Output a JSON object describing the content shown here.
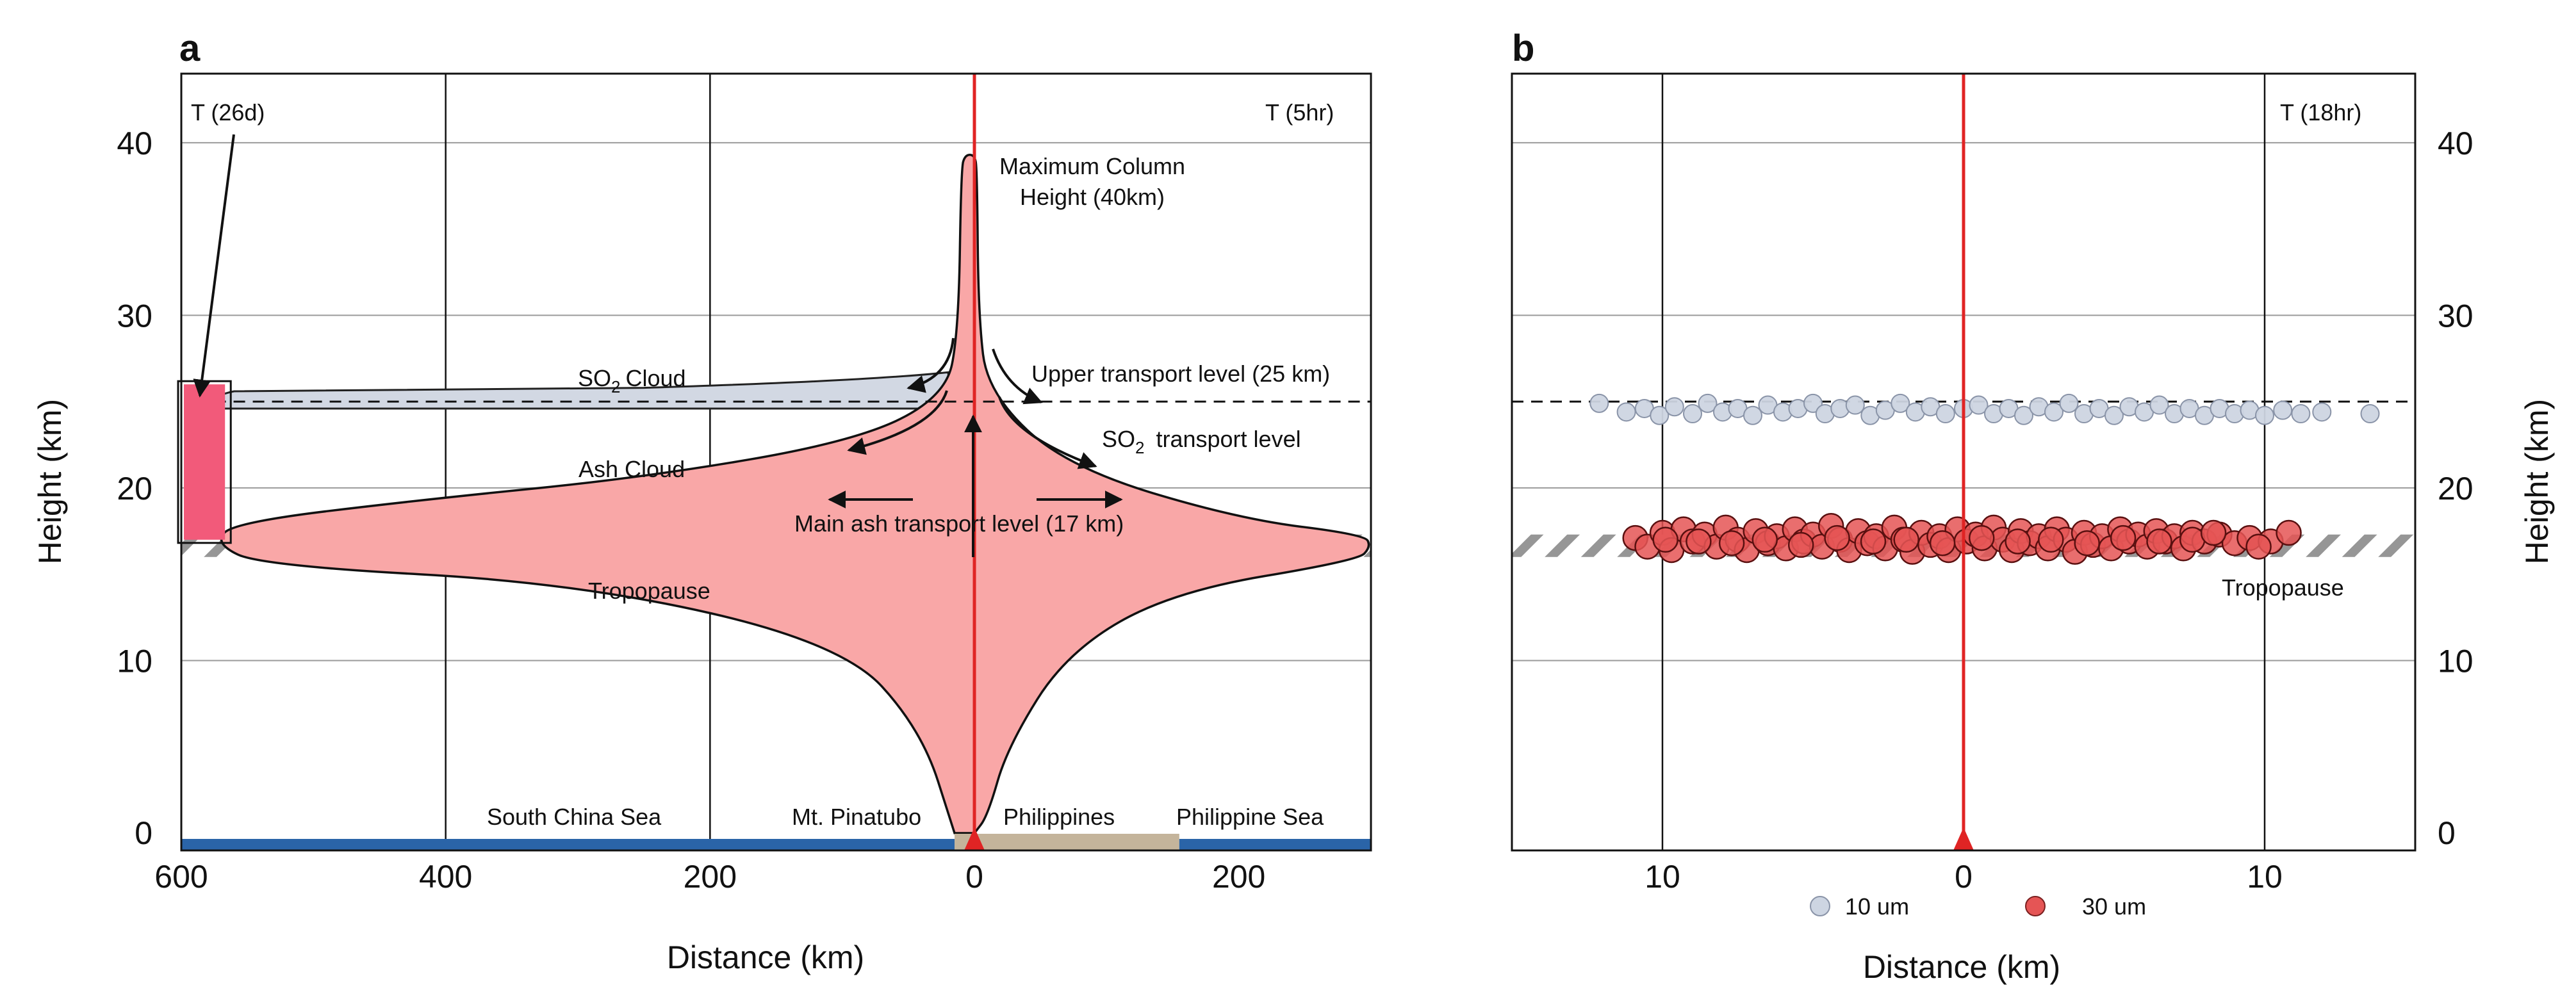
{
  "colors": {
    "plume": "#f9a7a7",
    "so2_cloud": "#d2d8e3",
    "so2_box": "#f25a7a",
    "vent_line": "#e02424",
    "sea": "#2a64a8",
    "land": "#c4b49b",
    "hatch": "#8a8a8a",
    "particle_10um": "#cdd5e2",
    "particle_30um": "#e55555"
  },
  "chart_data": [
    {
      "panel": "a",
      "type": "schematic-area",
      "xlabel": "Distance (km)",
      "ylabel": "Height (km)",
      "xlim": [
        -600,
        300
      ],
      "ylim": [
        -1,
        44
      ],
      "x_ticks": [
        {
          "value": -600,
          "label": "600"
        },
        {
          "value": -400,
          "label": "400"
        },
        {
          "value": -200,
          "label": "200"
        },
        {
          "value": 0,
          "label": "0"
        },
        {
          "value": 200,
          "label": "200"
        }
      ],
      "y_ticks": [
        {
          "value": 0,
          "label": "0"
        },
        {
          "value": 10,
          "label": "10"
        },
        {
          "value": 20,
          "label": "20"
        },
        {
          "value": 30,
          "label": "30"
        },
        {
          "value": 40,
          "label": "40"
        }
      ],
      "gridlines_x": [
        -400,
        -200,
        0
      ],
      "gridlines_y": [
        10,
        20,
        30,
        40
      ],
      "time_left": "T (26d)",
      "time_right": "T (5hr)",
      "max_column_height_km": 40,
      "upper_transport_level_km": 25,
      "main_ash_transport_level_km": 17,
      "tropopause_km": [
        16,
        17.3
      ],
      "so2_cloud_extent_km": [
        -575,
        -20
      ],
      "ash_cloud_extent_km": [
        -580,
        300
      ],
      "so2_box": {
        "x_range_km": [
          -600,
          -565
        ],
        "height_km": [
          17,
          26
        ]
      },
      "ash_cloud_outline": [
        [
          -15,
          0
        ],
        [
          -40,
          6
        ],
        [
          -100,
          11
        ],
        [
          -300,
          14.5
        ],
        [
          -540,
          15.5
        ],
        [
          -575,
          16.8
        ],
        [
          -560,
          18
        ],
        [
          -420,
          19.3
        ],
        [
          -250,
          20.6
        ],
        [
          -90,
          22.7
        ],
        [
          -22,
          25.3
        ],
        [
          -12,
          29
        ],
        [
          -10,
          38.5
        ],
        [
          -7,
          39.3
        ],
        [
          0,
          39.3
        ],
        [
          2,
          38.5
        ],
        [
          3,
          30
        ],
        [
          10,
          25.5
        ],
        [
          70,
          21.2
        ],
        [
          200,
          18.2
        ],
        [
          295,
          17.3
        ],
        [
          300,
          16.6
        ],
        [
          290,
          15.8
        ],
        [
          150,
          14
        ],
        [
          70,
          10.5
        ],
        [
          25,
          5
        ],
        [
          10,
          1
        ],
        [
          0,
          0
        ]
      ],
      "surface": {
        "sea_left_km": [
          -600,
          -15
        ],
        "land_km": [
          -15,
          155
        ],
        "sea_right_km": [
          155,
          300
        ]
      },
      "labels": {
        "panel_letter": "a",
        "so2_cloud": "SO",
        "so2_cloud_sub": "2",
        "so2_cloud_tail": "Cloud",
        "ash_cloud": "Ash Cloud",
        "max_column_line1": "Maximum Column",
        "max_column_line2": "Height (40km)",
        "upper_transport": "Upper transport level (25 km)",
        "so2_transport": "SO",
        "so2_transport_sub": "2",
        "so2_transport_tail": "transport level",
        "main_ash_transport": "Main ash transport level (17 km)",
        "tropopause": "Tropopause",
        "south_china_sea": "South China Sea",
        "mt_pinatubo": "Mt. Pinatubo",
        "philippines": "Philippines",
        "philippine_sea": "Philippine Sea"
      }
    },
    {
      "panel": "b",
      "type": "scatter",
      "xlabel": "Distance (km)",
      "ylabel": "Height (km)",
      "xlim": [
        -15,
        15
      ],
      "ylim": [
        -1,
        44
      ],
      "x_ticks": [
        {
          "value": -10,
          "label": "10"
        },
        {
          "value": 0,
          "label": "0"
        },
        {
          "value": 10,
          "label": "10"
        }
      ],
      "y_ticks": [
        {
          "value": 0,
          "label": "0"
        },
        {
          "value": 10,
          "label": "10"
        },
        {
          "value": 20,
          "label": "20"
        },
        {
          "value": 30,
          "label": "30"
        },
        {
          "value": 40,
          "label": "40"
        }
      ],
      "gridlines_x": [
        -10,
        10
      ],
      "gridlines_y": [
        10,
        20,
        30,
        40
      ],
      "time_label": "T (18hr)",
      "upper_level_km": 25,
      "tropopause_km": [
        16,
        17.3
      ],
      "tropopause_label": "Tropopause",
      "panel_letter": "b",
      "legend": [
        {
          "name": "10 um",
          "color": "#cdd5e2"
        },
        {
          "name": "30 um",
          "color": "#e55555"
        }
      ],
      "series": [
        {
          "name": "10 um",
          "points": [
            [
              -12.1,
              24.9
            ],
            [
              -11.2,
              24.4
            ],
            [
              -10.6,
              24.6
            ],
            [
              -10.1,
              24.2
            ],
            [
              -9.6,
              24.7
            ],
            [
              -9.0,
              24.3
            ],
            [
              -8.5,
              24.9
            ],
            [
              -8.0,
              24.4
            ],
            [
              -7.5,
              24.6
            ],
            [
              -7.0,
              24.2
            ],
            [
              -6.5,
              24.8
            ],
            [
              -6.0,
              24.4
            ],
            [
              -5.5,
              24.6
            ],
            [
              -5.0,
              24.9
            ],
            [
              -4.6,
              24.3
            ],
            [
              -4.1,
              24.6
            ],
            [
              -3.6,
              24.8
            ],
            [
              -3.1,
              24.2
            ],
            [
              -2.6,
              24.5
            ],
            [
              -2.1,
              24.9
            ],
            [
              -1.6,
              24.4
            ],
            [
              -1.1,
              24.7
            ],
            [
              -0.6,
              24.3
            ],
            [
              0.0,
              24.6
            ],
            [
              0.5,
              24.8
            ],
            [
              1.0,
              24.3
            ],
            [
              1.5,
              24.6
            ],
            [
              2.0,
              24.2
            ],
            [
              2.5,
              24.7
            ],
            [
              3.0,
              24.4
            ],
            [
              3.5,
              24.9
            ],
            [
              4.0,
              24.3
            ],
            [
              4.5,
              24.6
            ],
            [
              5.0,
              24.2
            ],
            [
              5.5,
              24.7
            ],
            [
              6.0,
              24.4
            ],
            [
              6.5,
              24.8
            ],
            [
              7.0,
              24.3
            ],
            [
              7.5,
              24.6
            ],
            [
              8.0,
              24.2
            ],
            [
              8.5,
              24.6
            ],
            [
              9.0,
              24.3
            ],
            [
              9.5,
              24.5
            ],
            [
              10.0,
              24.2
            ],
            [
              10.6,
              24.5
            ],
            [
              11.2,
              24.3
            ],
            [
              11.9,
              24.4
            ],
            [
              13.5,
              24.3
            ]
          ]
        },
        {
          "name": "30 um",
          "points": [
            [
              -10.9,
              17.1
            ],
            [
              -10.5,
              16.6
            ],
            [
              -10.0,
              17.4
            ],
            [
              -9.7,
              16.4
            ],
            [
              -9.3,
              17.6
            ],
            [
              -9.0,
              16.9
            ],
            [
              -8.6,
              17.3
            ],
            [
              -8.2,
              16.6
            ],
            [
              -7.9,
              17.7
            ],
            [
              -7.5,
              17.0
            ],
            [
              -7.2,
              16.4
            ],
            [
              -6.9,
              17.5
            ],
            [
              -6.5,
              16.8
            ],
            [
              -6.2,
              17.2
            ],
            [
              -5.9,
              16.5
            ],
            [
              -5.6,
              17.6
            ],
            [
              -5.3,
              16.9
            ],
            [
              -5.0,
              17.3
            ],
            [
              -4.7,
              16.6
            ],
            [
              -4.4,
              17.8
            ],
            [
              -4.1,
              17.0
            ],
            [
              -3.8,
              16.4
            ],
            [
              -3.5,
              17.5
            ],
            [
              -3.2,
              16.8
            ],
            [
              -2.9,
              17.2
            ],
            [
              -2.6,
              16.5
            ],
            [
              -2.3,
              17.7
            ],
            [
              -2.0,
              17.0
            ],
            [
              -1.7,
              16.3
            ],
            [
              -1.4,
              17.4
            ],
            [
              -1.1,
              16.7
            ],
            [
              -0.8,
              17.2
            ],
            [
              -0.5,
              16.4
            ],
            [
              -0.2,
              17.6
            ],
            [
              0.1,
              16.9
            ],
            [
              0.4,
              17.3
            ],
            [
              0.7,
              16.5
            ],
            [
              1.0,
              17.7
            ],
            [
              1.3,
              17.0
            ],
            [
              1.6,
              16.4
            ],
            [
              1.9,
              17.5
            ],
            [
              2.2,
              16.8
            ],
            [
              2.5,
              17.2
            ],
            [
              2.8,
              16.5
            ],
            [
              3.1,
              17.6
            ],
            [
              3.4,
              17.0
            ],
            [
              3.7,
              16.3
            ],
            [
              4.0,
              17.4
            ],
            [
              4.3,
              16.7
            ],
            [
              4.6,
              17.2
            ],
            [
              4.9,
              16.5
            ],
            [
              5.2,
              17.6
            ],
            [
              5.5,
              16.9
            ],
            [
              5.8,
              17.3
            ],
            [
              6.1,
              16.6
            ],
            [
              6.4,
              17.5
            ],
            [
              6.7,
              16.9
            ],
            [
              7.0,
              17.2
            ],
            [
              7.3,
              16.5
            ],
            [
              7.6,
              17.4
            ],
            [
              8.0,
              16.9
            ],
            [
              8.5,
              17.3
            ],
            [
              9.0,
              16.8
            ],
            [
              9.5,
              17.1
            ],
            [
              10.2,
              16.9
            ],
            [
              10.8,
              17.4
            ],
            [
              -8.8,
              16.9
            ],
            [
              -7.7,
              16.8
            ],
            [
              -6.6,
              17.0
            ],
            [
              -5.4,
              16.7
            ],
            [
              -4.2,
              17.1
            ],
            [
              -3.0,
              16.9
            ],
            [
              -1.9,
              17.0
            ],
            [
              -0.7,
              16.8
            ],
            [
              0.6,
              17.1
            ],
            [
              1.8,
              16.9
            ],
            [
              2.9,
              17.0
            ],
            [
              4.1,
              16.8
            ],
            [
              5.3,
              17.1
            ],
            [
              6.5,
              16.9
            ],
            [
              7.6,
              17.0
            ],
            [
              8.3,
              17.4
            ],
            [
              -9.9,
              17.0
            ],
            [
              9.8,
              16.6
            ]
          ]
        }
      ]
    }
  ]
}
